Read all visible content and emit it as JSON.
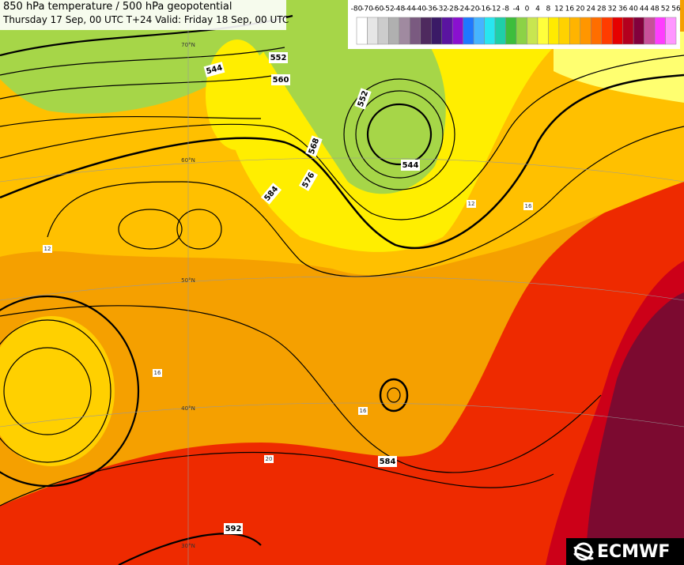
{
  "header": {
    "title": "850 hPa temperature / 500 hPa geopotential",
    "subtitle": "Thursday 17 Sep, 00 UTC T+24 Valid: Friday 18 Sep, 00 UTC"
  },
  "colorbar": {
    "labels": [
      "-80",
      "-70",
      "-60",
      "-52",
      "-48",
      "-44",
      "-40",
      "-36",
      "-32",
      "-28",
      "-24",
      "-20",
      "-16",
      "-12",
      "-8",
      "-4",
      "0",
      "4",
      "8",
      "12",
      "16",
      "20",
      "24",
      "28",
      "32",
      "36",
      "40",
      "44",
      "48",
      "52",
      "56"
    ],
    "colors": [
      "#ffffff",
      "#e6e6e6",
      "#cccccc",
      "#b0b0b0",
      "#a08aa0",
      "#7a5a80",
      "#4e2a5e",
      "#3a1a66",
      "#5a14a0",
      "#8a10d0",
      "#1e78ff",
      "#46b4ff",
      "#28e6f0",
      "#1ecfa8",
      "#3cbe3c",
      "#8cd246",
      "#c8e650",
      "#ffff3c",
      "#ffeb00",
      "#ffd200",
      "#ffb400",
      "#ff9600",
      "#ff6e00",
      "#ff3c00",
      "#e60000",
      "#b4001e",
      "#82003c",
      "#c8509a",
      "#ff3cff",
      "#ff96ff"
    ]
  },
  "contour_labels": [
    "544",
    "552",
    "560",
    "552",
    "544",
    "568",
    "576",
    "584",
    "584",
    "592"
  ],
  "temp_labels": [
    "12",
    "16",
    "16",
    "12",
    "16",
    "20"
  ],
  "lat_labels": [
    "70°N",
    "60°N",
    "50°N",
    "40°N",
    "30°N"
  ],
  "logo": "ECMWF"
}
